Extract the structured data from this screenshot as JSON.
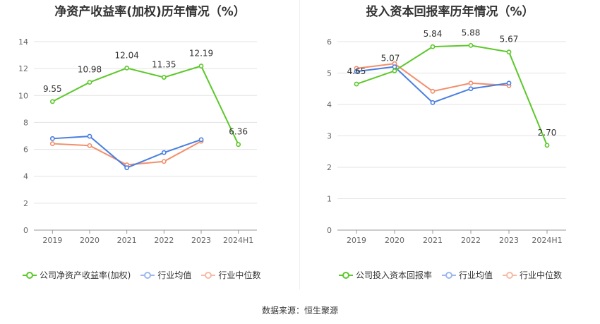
{
  "source_text": "数据来源：恒生聚源",
  "chart_data": [
    {
      "type": "line",
      "title": "净资产收益率(加权)历年情况（%）",
      "categories": [
        "2019",
        "2020",
        "2021",
        "2022",
        "2023",
        "2024H1"
      ],
      "y_ticks": [
        "0",
        "2",
        "4",
        "6",
        "8",
        "10",
        "12",
        "14"
      ],
      "ylim": [
        0,
        14
      ],
      "grid": true,
      "legend_position": "bottom",
      "series": [
        {
          "name": "公司净资产收益率(加权)",
          "color": "#5cc82a",
          "values": [
            9.55,
            10.98,
            12.04,
            11.35,
            12.19,
            6.36
          ],
          "labels": [
            "9.55",
            "10.98",
            "12.04",
            "11.35",
            "12.19",
            "6.36"
          ]
        },
        {
          "name": "行业均值",
          "color": "#4a7fe0",
          "values": [
            6.8,
            6.97,
            4.63,
            5.76,
            6.72,
            null
          ]
        },
        {
          "name": "行业中位数",
          "color": "#f28e6b",
          "values": [
            6.42,
            6.28,
            4.85,
            5.1,
            6.6,
            null
          ]
        }
      ]
    },
    {
      "type": "line",
      "title": "投入资本回报率历年情况（%）",
      "categories": [
        "2019",
        "2020",
        "2021",
        "2022",
        "2023",
        "2024H1"
      ],
      "y_ticks": [
        "0",
        "1",
        "2",
        "3",
        "4",
        "5",
        "6"
      ],
      "ylim": [
        0,
        6
      ],
      "grid": true,
      "legend_position": "bottom",
      "series": [
        {
          "name": "公司投入资本回报率",
          "color": "#5cc82a",
          "values": [
            4.65,
            5.07,
            5.84,
            5.88,
            5.67,
            2.7
          ],
          "labels": [
            "4.65",
            "5.07",
            "5.84",
            "5.88",
            "5.67",
            "2.70"
          ]
        },
        {
          "name": "行业均值",
          "color": "#4a7fe0",
          "values": [
            5.05,
            5.2,
            4.06,
            4.5,
            4.68,
            null
          ]
        },
        {
          "name": "行业中位数",
          "color": "#f28e6b",
          "values": [
            5.15,
            5.3,
            4.42,
            4.68,
            4.6,
            null
          ]
        }
      ]
    }
  ]
}
